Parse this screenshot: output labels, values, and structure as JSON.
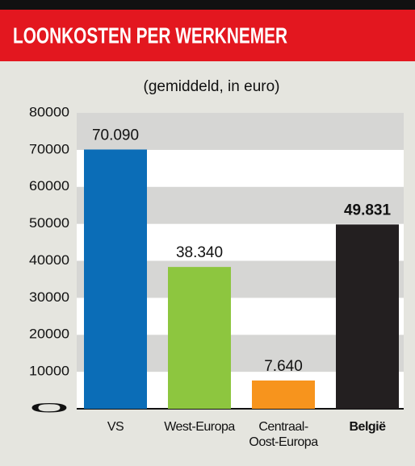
{
  "chart_data": {
    "type": "bar",
    "title": "LOONKOSTEN PER WERKNEMER",
    "subtitle": "(gemiddeld, in euro)",
    "categories": [
      "VS",
      "West-Europa",
      "Centraal-\nOost-Europa",
      "België"
    ],
    "values": [
      70090,
      38340,
      7640,
      49831
    ],
    "value_labels": [
      "70.090",
      "38.340",
      "7.640",
      "49.831"
    ],
    "colors": [
      "#0b6db7",
      "#8dc63f",
      "#f7941d",
      "#231f20"
    ],
    "emphasis": [
      false,
      false,
      false,
      true
    ],
    "ylim": [
      0,
      80000
    ],
    "yticks": [
      0,
      10000,
      20000,
      30000,
      40000,
      50000,
      60000,
      70000,
      80000
    ],
    "grid": true
  }
}
